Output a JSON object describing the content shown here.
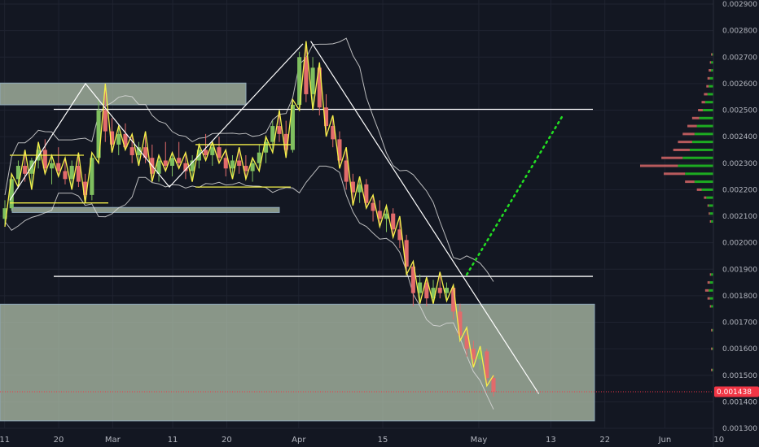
{
  "chart_data": {
    "type": "candlestick",
    "ylim": [
      0.0013,
      0.0029
    ],
    "y_ticks": [
      "0.002900",
      "0.002800",
      "0.002700",
      "0.002600",
      "0.002500",
      "0.002400",
      "0.002300",
      "0.002200",
      "0.002100",
      "0.002000",
      "0.001900",
      "0.001800",
      "0.001700",
      "0.001600",
      "0.001500",
      "0.001400",
      "0.001300"
    ],
    "x_ticks": [
      "11",
      "20",
      "Mar",
      "11",
      "20",
      "Apr",
      "15",
      "May",
      "13",
      "22",
      "Jun",
      "10"
    ],
    "last_price": "0.001438",
    "last_price_value": 0.001438,
    "colors": {
      "up": "#7fbf5f",
      "down": "#e26b6b",
      "pattern": "#f5f04a",
      "projection": "#22dd22",
      "levels": "#ffffff",
      "zones": "#b7c7b0",
      "price_badge": "#f23645"
    },
    "horizontal_levels": [
      0.002503,
      0.001873
    ],
    "zones": [
      {
        "y_top": 0.002602,
        "y_bottom": 0.00252
      },
      {
        "y_top": 0.002133,
        "y_bottom": 0.002114
      },
      {
        "y_top": 0.001768,
        "y_bottom": 0.001328
      }
    ],
    "trend_line": {
      "from": {
        "x": "Apr 3",
        "y": 0.00276
      },
      "to": {
        "x": "May 11",
        "y": 0.00143
      }
    },
    "projection": {
      "from": {
        "x": "Apr 29",
        "y": 0.00188
      },
      "to": {
        "x": "May 15",
        "y": 0.00248
      }
    },
    "candles": [
      {
        "o": 0.00209,
        "h": 0.00216,
        "l": 0.00206,
        "c": 0.00213
      },
      {
        "o": 0.00213,
        "h": 0.00226,
        "l": 0.00212,
        "c": 0.00224
      },
      {
        "o": 0.00224,
        "h": 0.00231,
        "l": 0.00221,
        "c": 0.00229
      },
      {
        "o": 0.00229,
        "h": 0.00235,
        "l": 0.00223,
        "c": 0.00226
      },
      {
        "o": 0.00226,
        "h": 0.00232,
        "l": 0.0022,
        "c": 0.00231
      },
      {
        "o": 0.00231,
        "h": 0.00238,
        "l": 0.00228,
        "c": 0.00235
      },
      {
        "o": 0.00235,
        "h": 0.00239,
        "l": 0.00226,
        "c": 0.00228
      },
      {
        "o": 0.00228,
        "h": 0.00233,
        "l": 0.00222,
        "c": 0.0023
      },
      {
        "o": 0.0023,
        "h": 0.00236,
        "l": 0.00225,
        "c": 0.00227
      },
      {
        "o": 0.00227,
        "h": 0.00232,
        "l": 0.00222,
        "c": 0.00224
      },
      {
        "o": 0.00224,
        "h": 0.00231,
        "l": 0.0022,
        "c": 0.00229
      },
      {
        "o": 0.00229,
        "h": 0.00234,
        "l": 0.00221,
        "c": 0.00223
      },
      {
        "o": 0.00223,
        "h": 0.00226,
        "l": 0.00215,
        "c": 0.00218
      },
      {
        "o": 0.00218,
        "h": 0.00234,
        "l": 0.00216,
        "c": 0.00232
      },
      {
        "o": 0.00232,
        "h": 0.00254,
        "l": 0.0023,
        "c": 0.0025
      },
      {
        "o": 0.0025,
        "h": 0.0026,
        "l": 0.00238,
        "c": 0.00242
      },
      {
        "o": 0.00242,
        "h": 0.00247,
        "l": 0.00234,
        "c": 0.00237
      },
      {
        "o": 0.00237,
        "h": 0.00244,
        "l": 0.00233,
        "c": 0.00241
      },
      {
        "o": 0.00241,
        "h": 0.00245,
        "l": 0.00235,
        "c": 0.00236
      },
      {
        "o": 0.00236,
        "h": 0.00241,
        "l": 0.0023,
        "c": 0.00233
      },
      {
        "o": 0.00233,
        "h": 0.00238,
        "l": 0.00229,
        "c": 0.00236
      },
      {
        "o": 0.00236,
        "h": 0.00242,
        "l": 0.0023,
        "c": 0.00232
      },
      {
        "o": 0.00232,
        "h": 0.00237,
        "l": 0.00223,
        "c": 0.00226
      },
      {
        "o": 0.00226,
        "h": 0.00233,
        "l": 0.00223,
        "c": 0.00231
      },
      {
        "o": 0.00231,
        "h": 0.00238,
        "l": 0.00227,
        "c": 0.00229
      },
      {
        "o": 0.00229,
        "h": 0.00234,
        "l": 0.00225,
        "c": 0.00232
      },
      {
        "o": 0.00232,
        "h": 0.00238,
        "l": 0.00228,
        "c": 0.0023
      },
      {
        "o": 0.0023,
        "h": 0.00234,
        "l": 0.00224,
        "c": 0.00227
      },
      {
        "o": 0.00227,
        "h": 0.00233,
        "l": 0.00223,
        "c": 0.00231
      },
      {
        "o": 0.00231,
        "h": 0.00237,
        "l": 0.00228,
        "c": 0.00235
      },
      {
        "o": 0.00235,
        "h": 0.00241,
        "l": 0.00231,
        "c": 0.00233
      },
      {
        "o": 0.00233,
        "h": 0.00238,
        "l": 0.00229,
        "c": 0.00236
      },
      {
        "o": 0.00236,
        "h": 0.0024,
        "l": 0.0023,
        "c": 0.00232
      },
      {
        "o": 0.00232,
        "h": 0.00235,
        "l": 0.00225,
        "c": 0.00228
      },
      {
        "o": 0.00228,
        "h": 0.00233,
        "l": 0.00224,
        "c": 0.00231
      },
      {
        "o": 0.00231,
        "h": 0.00236,
        "l": 0.00226,
        "c": 0.00229
      },
      {
        "o": 0.00229,
        "h": 0.00233,
        "l": 0.00224,
        "c": 0.00227
      },
      {
        "o": 0.00227,
        "h": 0.00232,
        "l": 0.00223,
        "c": 0.0023
      },
      {
        "o": 0.0023,
        "h": 0.00237,
        "l": 0.00227,
        "c": 0.00234
      },
      {
        "o": 0.00234,
        "h": 0.0024,
        "l": 0.0023,
        "c": 0.00238
      },
      {
        "o": 0.00238,
        "h": 0.00246,
        "l": 0.00234,
        "c": 0.00244
      },
      {
        "o": 0.00244,
        "h": 0.0025,
        "l": 0.00238,
        "c": 0.00241
      },
      {
        "o": 0.00241,
        "h": 0.00246,
        "l": 0.00232,
        "c": 0.00235
      },
      {
        "o": 0.00235,
        "h": 0.00254,
        "l": 0.00234,
        "c": 0.00252
      },
      {
        "o": 0.00252,
        "h": 0.00272,
        "l": 0.0025,
        "c": 0.0027
      },
      {
        "o": 0.0027,
        "h": 0.00276,
        "l": 0.00253,
        "c": 0.00256
      },
      {
        "o": 0.00256,
        "h": 0.0027,
        "l": 0.0025,
        "c": 0.00266
      },
      {
        "o": 0.00266,
        "h": 0.00268,
        "l": 0.00248,
        "c": 0.00251
      },
      {
        "o": 0.00251,
        "h": 0.00256,
        "l": 0.0024,
        "c": 0.00244
      },
      {
        "o": 0.00244,
        "h": 0.00248,
        "l": 0.00236,
        "c": 0.00239
      },
      {
        "o": 0.00239,
        "h": 0.00242,
        "l": 0.00228,
        "c": 0.00231
      },
      {
        "o": 0.00231,
        "h": 0.00236,
        "l": 0.0022,
        "c": 0.00223
      },
      {
        "o": 0.00223,
        "h": 0.00226,
        "l": 0.00214,
        "c": 0.00219
      },
      {
        "o": 0.00219,
        "h": 0.00225,
        "l": 0.00215,
        "c": 0.00222
      },
      {
        "o": 0.00222,
        "h": 0.00224,
        "l": 0.00213,
        "c": 0.00215
      },
      {
        "o": 0.00215,
        "h": 0.00218,
        "l": 0.00208,
        "c": 0.00212
      },
      {
        "o": 0.00212,
        "h": 0.00216,
        "l": 0.00206,
        "c": 0.00209
      },
      {
        "o": 0.00209,
        "h": 0.00214,
        "l": 0.00204,
        "c": 0.00211
      },
      {
        "o": 0.00211,
        "h": 0.00213,
        "l": 0.00202,
        "c": 0.00205
      },
      {
        "o": 0.00205,
        "h": 0.0021,
        "l": 0.00198,
        "c": 0.00201
      },
      {
        "o": 0.00201,
        "h": 0.00203,
        "l": 0.00188,
        "c": 0.00191
      },
      {
        "o": 0.00191,
        "h": 0.00193,
        "l": 0.00176,
        "c": 0.00181
      },
      {
        "o": 0.00181,
        "h": 0.00188,
        "l": 0.00177,
        "c": 0.00185
      },
      {
        "o": 0.00185,
        "h": 0.00187,
        "l": 0.00176,
        "c": 0.00179
      },
      {
        "o": 0.00179,
        "h": 0.00186,
        "l": 0.00177,
        "c": 0.00183
      },
      {
        "o": 0.00183,
        "h": 0.00189,
        "l": 0.00179,
        "c": 0.00181
      },
      {
        "o": 0.00181,
        "h": 0.00185,
        "l": 0.00178,
        "c": 0.00183
      },
      {
        "o": 0.00183,
        "h": 0.00184,
        "l": 0.00171,
        "c": 0.00174
      },
      {
        "o": 0.00174,
        "h": 0.00177,
        "l": 0.00163,
        "c": 0.00165
      },
      {
        "o": 0.00165,
        "h": 0.00168,
        "l": 0.00157,
        "c": 0.0016
      },
      {
        "o": 0.0016,
        "h": 0.00163,
        "l": 0.00153,
        "c": 0.00156
      },
      {
        "o": 0.00156,
        "h": 0.00161,
        "l": 0.00152,
        "c": 0.00159
      },
      {
        "o": 0.00159,
        "h": 0.0016,
        "l": 0.00146,
        "c": 0.00149
      },
      {
        "o": 0.00149,
        "h": 0.0015,
        "l": 0.00142,
        "c": 0.001438
      }
    ],
    "volume_profile": [
      {
        "price": 0.00271,
        "up": 1,
        "down": 1
      },
      {
        "price": 0.00268,
        "up": 2,
        "down": 1
      },
      {
        "price": 0.00265,
        "up": 2,
        "down": 2
      },
      {
        "price": 0.00262,
        "up": 3,
        "down": 2
      },
      {
        "price": 0.00259,
        "up": 4,
        "down": 2
      },
      {
        "price": 0.00256,
        "up": 5,
        "down": 3
      },
      {
        "price": 0.00253,
        "up": 7,
        "down": 3
      },
      {
        "price": 0.0025,
        "up": 9,
        "down": 4
      },
      {
        "price": 0.00247,
        "up": 12,
        "down": 6
      },
      {
        "price": 0.00244,
        "up": 14,
        "down": 8
      },
      {
        "price": 0.00241,
        "up": 16,
        "down": 10
      },
      {
        "price": 0.00238,
        "up": 18,
        "down": 12
      },
      {
        "price": 0.00235,
        "up": 20,
        "down": 14
      },
      {
        "price": 0.00232,
        "up": 26,
        "down": 18
      },
      {
        "price": 0.00229,
        "up": 30,
        "down": 32
      },
      {
        "price": 0.00226,
        "up": 24,
        "down": 18
      },
      {
        "price": 0.00223,
        "up": 16,
        "down": 8
      },
      {
        "price": 0.0022,
        "up": 10,
        "down": 4
      },
      {
        "price": 0.00217,
        "up": 6,
        "down": 2
      },
      {
        "price": 0.00214,
        "up": 4,
        "down": 1
      },
      {
        "price": 0.00211,
        "up": 3,
        "down": 1
      },
      {
        "price": 0.00208,
        "up": 2,
        "down": 1
      },
      {
        "price": 0.00188,
        "up": 2,
        "down": 1
      },
      {
        "price": 0.00185,
        "up": 3,
        "down": 2
      },
      {
        "price": 0.00182,
        "up": 4,
        "down": 3
      },
      {
        "price": 0.00179,
        "up": 3,
        "down": 2
      },
      {
        "price": 0.00176,
        "up": 2,
        "down": 1
      },
      {
        "price": 0.00167,
        "up": 1,
        "down": 1
      },
      {
        "price": 0.0016,
        "up": 1,
        "down": 1
      },
      {
        "price": 0.00152,
        "up": 1,
        "down": 1
      }
    ]
  }
}
